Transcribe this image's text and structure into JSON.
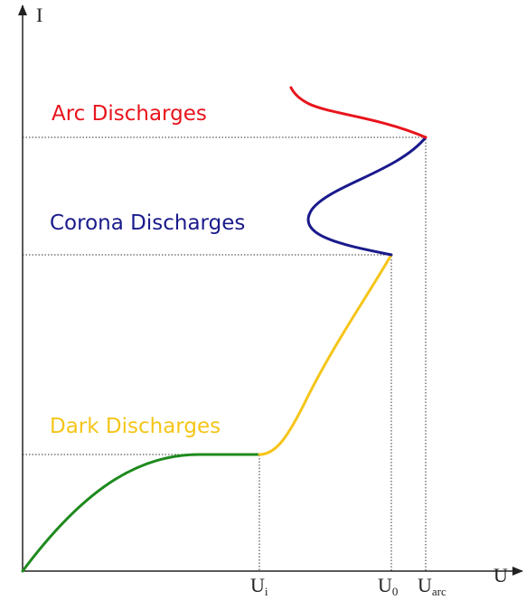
{
  "axes": {
    "y_label": "I",
    "x_label": "U"
  },
  "regions": [
    {
      "label": "Arc Discharges"
    },
    {
      "label": "Corona Discharges"
    },
    {
      "label": "Dark Discharges"
    }
  ],
  "ticks": [
    {
      "main": "U",
      "sub": "i"
    },
    {
      "main": "U",
      "sub": "0"
    },
    {
      "main": "U",
      "sub": "arc"
    }
  ]
}
